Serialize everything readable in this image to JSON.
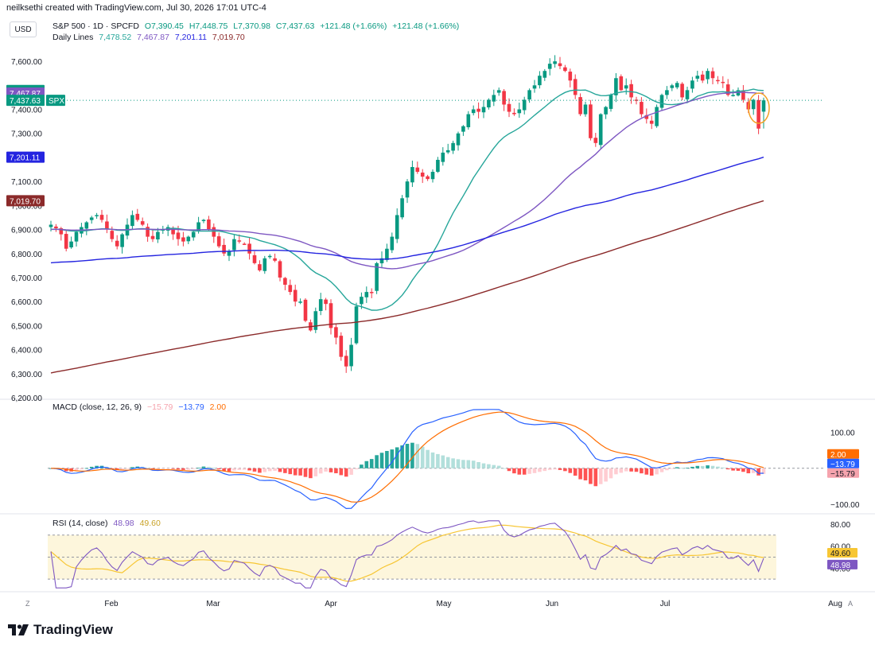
{
  "header": {
    "credit": "neilksethi created with TradingView.com, Jul 30, 2026 17:01 UTC-4",
    "currency": "USD"
  },
  "legend": {
    "symbol": "S&P 500 · 1D · SPCFD",
    "open": "O7,390.45",
    "high": "H7,448.75",
    "low": "L7,370.98",
    "close": "C7,437.63",
    "change": "+121.48 (+1.66%)",
    "change2": "+121.48 (+1.66%)",
    "daily_lines_label": "Daily Lines",
    "dl1": "7,478.52",
    "dl2": "7,467.87",
    "dl3": "7,201.11",
    "dl4": "7,019.70"
  },
  "macd_legend": {
    "label": "MACD (close, 12, 26, 9)",
    "v1": "−15.79",
    "v2": "−13.79",
    "v3": "2.00"
  },
  "rsi_legend": {
    "label": "RSI (14, close)",
    "v1": "48.98",
    "v2": "49.60"
  },
  "colors": {
    "up": "#089981",
    "down": "#f23645",
    "ma_green": "#26a69a",
    "ma_purple": "#7e57c2",
    "ma_blue": "#2424e0",
    "ma_maroon": "#8b2a2a",
    "macd": "#2962ff",
    "signal": "#ff6d00",
    "rsi": "#7e57c2",
    "rsi_ma": "#f7c634"
  },
  "footer": {
    "brand": "TradingView",
    "corner_left": "Z",
    "corner_right": "A"
  },
  "chart_data": [
    {
      "type": "candlestick",
      "title": "S&P 500 · 1D · SPCFD",
      "x_labels": [
        "Feb",
        "Mar",
        "Apr",
        "May",
        "Jun",
        "Jul",
        "Aug"
      ],
      "ylim": [
        6200,
        7650
      ],
      "y_ticks": [
        6200,
        6300,
        6400,
        6500,
        6600,
        6700,
        6800,
        6900,
        7000,
        7100,
        7200,
        7300,
        7400,
        7600
      ],
      "y_tick_labels": [
        "6,200.00",
        "6,300.00",
        "6,400.00",
        "6,500.00",
        "6,600.00",
        "6,700.00",
        "6,800.00",
        "6,900.00",
        "7,000.00",
        "7,100.00",
        "7,200.00",
        "7,300.00",
        "7,400.00",
        "7,600.00"
      ],
      "price_tags": [
        {
          "label": "7,478.52",
          "value": 7478.52,
          "color": "#089981"
        },
        {
          "label": "7,467.87",
          "value": 7467.87,
          "color": "#7e57c2"
        },
        {
          "label": "7,437.63",
          "value": 7437.63,
          "color": "#089981",
          "symbol": "SPX"
        },
        {
          "label": "7,201.11",
          "value": 7201.11,
          "color": "#2424e0"
        },
        {
          "label": "7,019.70",
          "value": 7019.7,
          "color": "#8b2a2a"
        }
      ],
      "close_approx": [
        6920,
        6905,
        6880,
        6820,
        6850,
        6890,
        6910,
        6930,
        6950,
        6960,
        6940,
        6900,
        6860,
        6830,
        6880,
        6920,
        6960,
        6940,
        6920,
        6870,
        6860,
        6890,
        6900,
        6910,
        6880,
        6860,
        6850,
        6870,
        6890,
        6930,
        6940,
        6900,
        6870,
        6830,
        6800,
        6810,
        6860,
        6850,
        6840,
        6800,
        6760,
        6730,
        6780,
        6790,
        6770,
        6700,
        6670,
        6640,
        6600,
        6600,
        6520,
        6480,
        6560,
        6610,
        6590,
        6490,
        6450,
        6370,
        6330,
        6420,
        6580,
        6620,
        6640,
        6640,
        6760,
        6780,
        6820,
        6870,
        6960,
        7030,
        7100,
        7160,
        7140,
        7120,
        7110,
        7140,
        7190,
        7220,
        7230,
        7260,
        7300,
        7330,
        7380,
        7400,
        7390,
        7410,
        7440,
        7460,
        7480,
        7420,
        7390,
        7380,
        7400,
        7440,
        7480,
        7500,
        7540,
        7560,
        7590,
        7600,
        7580,
        7560,
        7520,
        7460,
        7380,
        7420,
        7280,
        7260,
        7380,
        7410,
        7460,
        7530,
        7480,
        7500,
        7450,
        7440,
        7380,
        7360,
        7340,
        7410,
        7460,
        7480,
        7500,
        7510,
        7450,
        7480,
        7520,
        7540,
        7520,
        7560,
        7530,
        7520,
        7510,
        7460,
        7460,
        7480,
        7440,
        7400,
        7440,
        7320,
        7437.63
      ],
      "ma_lines": [
        {
          "name": "7,478.52",
          "color": "#26a69a",
          "end_value": 7478.52
        },
        {
          "name": "7,467.87",
          "color": "#7e57c2",
          "end_value": 7467.87
        },
        {
          "name": "7,201.11",
          "color": "#2424e0",
          "end_value": 7201.11
        },
        {
          "name": "7,019.70",
          "color": "#8b2a2a",
          "end_value": 7019.7
        }
      ]
    },
    {
      "type": "line",
      "title": "MACD (close, 12, 26, 9)",
      "ylim": [
        -120,
        170
      ],
      "y_ticks": [
        100,
        -100
      ],
      "y_tick_labels": [
        "100.00",
        "−100.00"
      ],
      "price_tags": [
        {
          "label": "2.00",
          "value": 2.0,
          "color": "#ff6d00"
        },
        {
          "label": "−13.79",
          "value": -13.79,
          "color": "#2962ff"
        },
        {
          "label": "−15.79",
          "value": -15.79,
          "color": "#f5a3ad"
        }
      ]
    },
    {
      "type": "line",
      "title": "RSI (14, close)",
      "ylim": [
        20,
        85
      ],
      "y_ticks": [
        80,
        60,
        40
      ],
      "y_tick_labels": [
        "80.00",
        "60.00",
        "40.00"
      ],
      "price_tags": [
        {
          "label": "49.60",
          "value": 49.6,
          "color": "#f7c634"
        },
        {
          "label": "48.98",
          "value": 48.98,
          "color": "#7e57c2"
        }
      ]
    }
  ]
}
